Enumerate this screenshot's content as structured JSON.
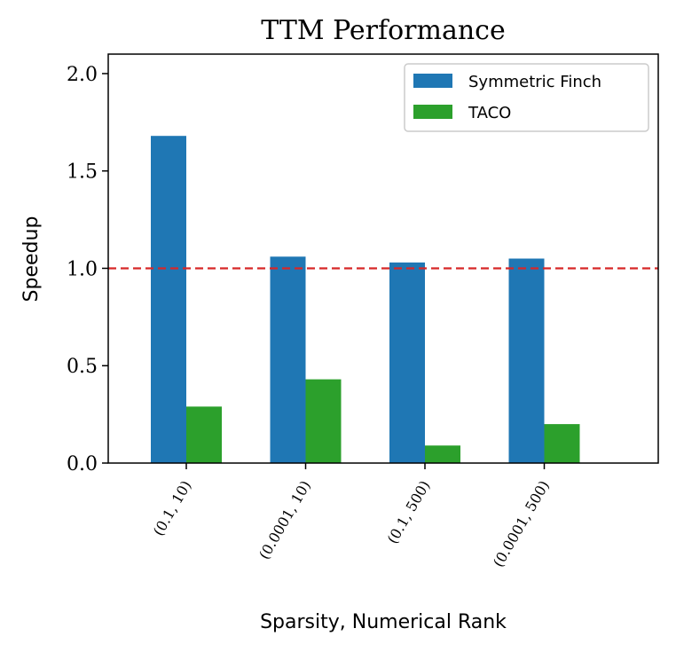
{
  "chart_data": {
    "type": "bar",
    "title": "TTM Performance",
    "xlabel": "Sparsity, Numerical Rank",
    "ylabel": "Speedup",
    "categories": [
      "(0.1, 10)",
      "(0.0001, 10)",
      "(0.1, 500)",
      "(0.0001, 500)"
    ],
    "series": [
      {
        "name": "Symmetric Finch",
        "color": "#1f77b4",
        "values": [
          1.68,
          1.06,
          1.03,
          1.05
        ]
      },
      {
        "name": "TACO",
        "color": "#2ca02c",
        "values": [
          0.29,
          0.43,
          0.09,
          0.2
        ]
      }
    ],
    "ylim": [
      0,
      2.1
    ],
    "yticks": [
      "0.0",
      "0.5",
      "1.0",
      "1.5",
      "2.0"
    ],
    "reference_line": {
      "value": 1.0,
      "color": "#d62728",
      "style": "dashed"
    },
    "legend_position": "top-right",
    "grid": false
  }
}
